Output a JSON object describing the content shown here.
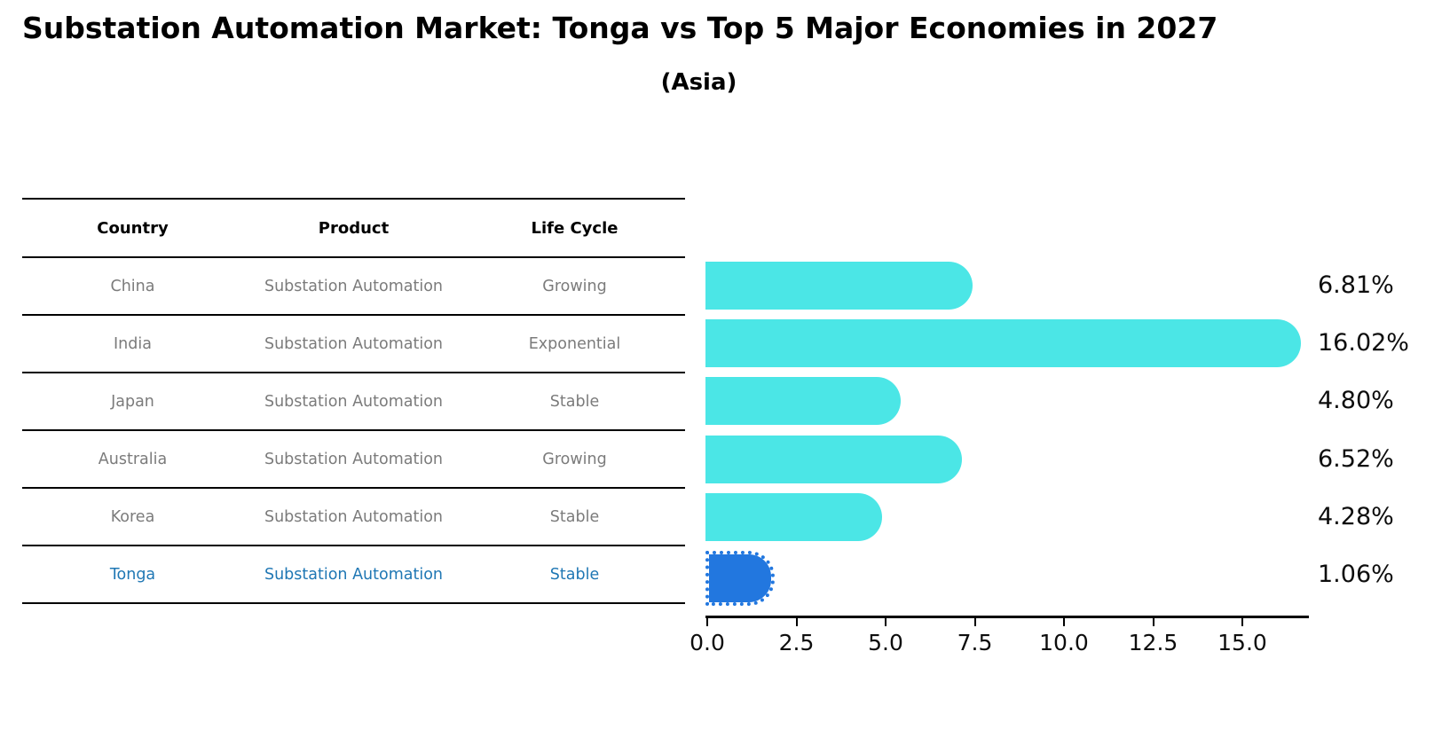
{
  "title": "Substation Automation Market: Tonga vs Top 5 Major Economies in 2027",
  "subtitle": "(Asia)",
  "table": {
    "headers": [
      "Country",
      "Product",
      "Life Cycle"
    ],
    "rows": [
      {
        "country": "China",
        "product": "Substation Automation",
        "life_cycle": "Growing",
        "highlight": false
      },
      {
        "country": "India",
        "product": "Substation Automation",
        "life_cycle": "Exponential",
        "highlight": false
      },
      {
        "country": "Japan",
        "product": "Substation Automation",
        "life_cycle": "Stable",
        "highlight": false
      },
      {
        "country": "Australia",
        "product": "Substation Automation",
        "life_cycle": "Growing",
        "highlight": false
      },
      {
        "country": "Korea",
        "product": "Substation Automation",
        "life_cycle": "Stable",
        "highlight": false
      },
      {
        "country": "Tonga",
        "product": "Substation Automation",
        "life_cycle": "Stable",
        "highlight": true
      }
    ]
  },
  "chart_data": {
    "type": "bar",
    "orientation": "horizontal",
    "title": "Substation Automation Market: Tonga vs Top 5 Major Economies in 2027 (Asia)",
    "categories": [
      "China",
      "India",
      "Japan",
      "Australia",
      "Korea",
      "Tonga"
    ],
    "values": [
      6.81,
      16.02,
      4.8,
      6.52,
      4.28,
      1.06
    ],
    "value_labels": [
      "6.81%",
      "16.02%",
      "4.80%",
      "6.52%",
      "4.28%",
      "1.06%"
    ],
    "xticks": [
      "0.0",
      "2.5",
      "5.0",
      "7.5",
      "10.0",
      "12.5",
      "15.0"
    ],
    "xlim": [
      0,
      16.9
    ],
    "grid": false,
    "legend": "none",
    "bar_color": "#4be6e6",
    "highlight_color": "#2277df",
    "highlight_index": 5
  },
  "colors": {
    "bar_cyan": "#4be6e6",
    "bar_highlight_blue": "#2277df",
    "highlight_text": "#1f77b4",
    "table_text_gray": "#7b7b7b",
    "text_black": "#000000"
  }
}
